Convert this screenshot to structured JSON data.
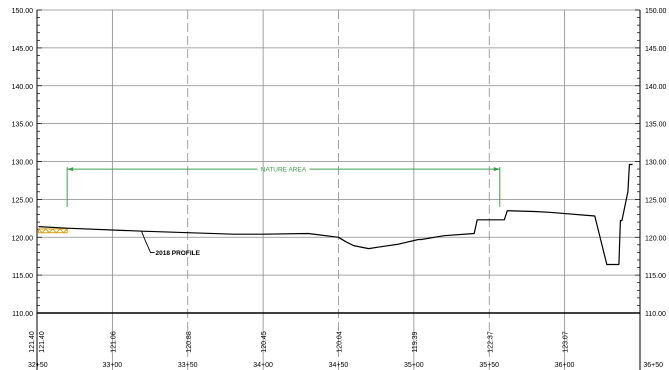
{
  "chart_data": {
    "type": "line",
    "xlim": [
      3250,
      3650
    ],
    "ylim": [
      110,
      150
    ],
    "x_ticks": [
      {
        "station": 3250,
        "label": "32+50",
        "line": "none"
      },
      {
        "station": 3300,
        "label": "33+00",
        "line": "solid"
      },
      {
        "station": 3350,
        "label": "33+50",
        "line": "dashed"
      },
      {
        "station": 3400,
        "label": "34+00",
        "line": "solid"
      },
      {
        "station": 3450,
        "label": "34+50",
        "line": "dashed"
      },
      {
        "station": 3500,
        "label": "35+00",
        "line": "solid"
      },
      {
        "station": 3550,
        "label": "35+50",
        "line": "dashed"
      },
      {
        "station": 3600,
        "label": "36+00",
        "line": "solid"
      },
      {
        "station": 3650,
        "label": "36+50",
        "line": "none"
      }
    ],
    "y_ticks": [
      {
        "value": 110,
        "label": "110.00"
      },
      {
        "value": 115,
        "label": "115.00"
      },
      {
        "value": 120,
        "label": "120.00"
      },
      {
        "value": 125,
        "label": "125.00"
      },
      {
        "value": 130,
        "label": "130.00"
      },
      {
        "value": 135,
        "label": "135.00"
      },
      {
        "value": 140,
        "label": "140.00"
      },
      {
        "value": 145,
        "label": "145.00"
      },
      {
        "value": 150,
        "label": "150.00"
      }
    ],
    "elevation_labels": [
      {
        "station": 3250,
        "text": "121.40"
      },
      {
        "station": 3253,
        "text": "121.40"
      },
      {
        "station": 3300,
        "text": "121.06"
      },
      {
        "station": 3350,
        "text": "120.88"
      },
      {
        "station": 3400,
        "text": "120.45"
      },
      {
        "station": 3450,
        "text": "120.04"
      },
      {
        "station": 3500,
        "text": "119.39"
      },
      {
        "station": 3550,
        "text": "122.37"
      },
      {
        "station": 3600,
        "text": "123.07"
      }
    ],
    "series": [
      {
        "name": "2018 PROFILE",
        "x": [
          3251,
          3270,
          3320,
          3380,
          3400,
          3430,
          3450,
          3455,
          3460,
          3470,
          3480,
          3490,
          3503,
          3505,
          3520,
          3540,
          3542,
          3548,
          3550,
          3560,
          3562,
          3580,
          3590,
          3620,
          3628,
          3636,
          3637,
          3638,
          3642,
          3643,
          3645
        ],
        "y": [
          121.4,
          121.2,
          120.8,
          120.4,
          120.4,
          120.5,
          120.0,
          119.4,
          118.9,
          118.5,
          118.8,
          119.1,
          119.7,
          119.7,
          120.2,
          120.5,
          122.3,
          122.3,
          122.3,
          122.3,
          123.5,
          123.4,
          123.3,
          122.8,
          116.4,
          116.4,
          122.2,
          122.2,
          126.0,
          129.6,
          129.6
        ]
      }
    ],
    "annotations": {
      "profile_label": "2018 PROFILE",
      "nature_area": {
        "label": "NATURE AREA",
        "x_start": 3270,
        "x_end": 3557,
        "y": 129.0,
        "y_drop": 124.0
      },
      "existing_wall_marker": {
        "x_start": 3251,
        "x_end": 3270,
        "y_top": 121.1,
        "y_bottom": 120.6,
        "color": "#d4a017"
      }
    },
    "colors": {
      "profile": "#000000",
      "grid": "#8a8a8a",
      "nature_area": "#3ca04a",
      "frame": "#000000"
    },
    "grid": true,
    "title": "",
    "xlabel": "",
    "ylabel": ""
  }
}
